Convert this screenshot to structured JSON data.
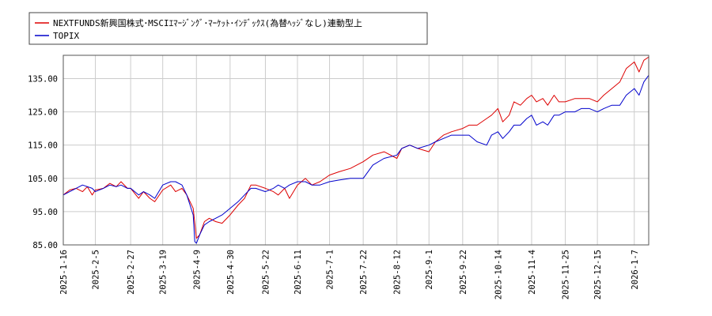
{
  "chart_data": {
    "type": "line",
    "title": "",
    "xlabel": "",
    "ylabel": "",
    "ylim": [
      85,
      142
    ],
    "yticks": [
      85,
      95,
      105,
      115,
      125,
      135
    ],
    "ytick_labels": [
      "85.00",
      "95.00",
      "105.00",
      "115.00",
      "125.00",
      "135.00"
    ],
    "grid": true,
    "legend_position": "top-left",
    "x_start": "2025-01-16",
    "x_end": "2026-01-16",
    "xticks": [
      "2025-1-16",
      "2025-2-5",
      "2025-2-27",
      "2025-3-19",
      "2025-4-9",
      "2025-4-30",
      "2025-5-22",
      "2025-6-11",
      "2025-7-1",
      "2025-7-22",
      "2025-8-12",
      "2025-9-1",
      "2025-9-22",
      "2025-10-14",
      "2025-11-4",
      "2025-11-25",
      "2025-12-15",
      "2026-1-7"
    ],
    "series": [
      {
        "name": "NEXTFUNDS新興国株式･MSCIｴﾏｰｼﾞﾝｸﾞ･ﾏｰｹｯﾄ･ｲﾝﾃﾞｯｸｽ(為替ﾍｯｼﾞなし)連動型上",
        "color": "#dd0000",
        "points": [
          [
            "2025-1-16",
            100
          ],
          [
            "2025-1-20",
            101.5
          ],
          [
            "2025-1-24",
            102
          ],
          [
            "2025-1-28",
            101
          ],
          [
            "2025-1-31",
            102.5
          ],
          [
            "2025-2-3",
            100
          ],
          [
            "2025-2-5",
            101.5
          ],
          [
            "2025-2-10",
            102
          ],
          [
            "2025-2-14",
            103.5
          ],
          [
            "2025-2-18",
            102.5
          ],
          [
            "2025-2-21",
            104
          ],
          [
            "2025-2-25",
            102
          ],
          [
            "2025-2-27",
            102
          ],
          [
            "2025-3-4",
            99
          ],
          [
            "2025-3-7",
            101
          ],
          [
            "2025-3-11",
            99
          ],
          [
            "2025-3-14",
            98
          ],
          [
            "2025-3-19",
            101.5
          ],
          [
            "2025-3-24",
            103
          ],
          [
            "2025-3-27",
            101
          ],
          [
            "2025-3-31",
            102
          ],
          [
            "2025-4-3",
            100
          ],
          [
            "2025-4-7",
            96
          ],
          [
            "2025-4-9",
            87
          ],
          [
            "2025-4-11",
            88
          ],
          [
            "2025-4-14",
            92
          ],
          [
            "2025-4-17",
            93
          ],
          [
            "2025-4-21",
            92
          ],
          [
            "2025-4-25",
            91.5
          ],
          [
            "2025-4-30",
            94
          ],
          [
            "2025-5-5",
            97
          ],
          [
            "2025-5-9",
            99
          ],
          [
            "2025-5-13",
            103
          ],
          [
            "2025-5-16",
            103
          ],
          [
            "2025-5-22",
            102
          ],
          [
            "2025-5-27",
            101
          ],
          [
            "2025-5-30",
            100
          ],
          [
            "2025-6-3",
            102
          ],
          [
            "2025-6-6",
            99
          ],
          [
            "2025-6-11",
            103
          ],
          [
            "2025-6-16",
            105
          ],
          [
            "2025-6-20",
            103
          ],
          [
            "2025-6-25",
            104
          ],
          [
            "2025-7-1",
            106
          ],
          [
            "2025-7-7",
            107
          ],
          [
            "2025-7-14",
            108
          ],
          [
            "2025-7-22",
            110
          ],
          [
            "2025-7-28",
            112
          ],
          [
            "2025-8-4",
            113
          ],
          [
            "2025-8-12",
            111
          ],
          [
            "2025-8-15",
            114
          ],
          [
            "2025-8-20",
            115
          ],
          [
            "2025-8-25",
            114
          ],
          [
            "2025-9-1",
            113
          ],
          [
            "2025-9-5",
            116
          ],
          [
            "2025-9-10",
            118
          ],
          [
            "2025-9-15",
            119
          ],
          [
            "2025-9-22",
            120
          ],
          [
            "2025-9-26",
            121
          ],
          [
            "2025-10-1",
            121
          ],
          [
            "2025-10-7",
            123
          ],
          [
            "2025-10-10",
            124
          ],
          [
            "2025-10-14",
            126
          ],
          [
            "2025-10-17",
            122
          ],
          [
            "2025-10-21",
            124
          ],
          [
            "2025-10-24",
            128
          ],
          [
            "2025-10-28",
            127
          ],
          [
            "2025-11-1",
            129
          ],
          [
            "2025-11-4",
            130
          ],
          [
            "2025-11-7",
            128
          ],
          [
            "2025-11-11",
            129
          ],
          [
            "2025-11-14",
            127
          ],
          [
            "2025-11-18",
            130
          ],
          [
            "2025-11-21",
            128
          ],
          [
            "2025-11-25",
            128
          ],
          [
            "2025-12-1",
            129
          ],
          [
            "2025-12-5",
            129
          ],
          [
            "2025-12-10",
            129
          ],
          [
            "2025-12-15",
            128
          ],
          [
            "2025-12-19",
            130
          ],
          [
            "2025-12-24",
            132
          ],
          [
            "2025-12-29",
            134
          ],
          [
            "2026-1-2",
            138
          ],
          [
            "2026-1-7",
            140
          ],
          [
            "2026-1-10",
            137
          ],
          [
            "2026-1-13",
            140.5
          ],
          [
            "2026-1-16",
            141.5
          ]
        ]
      },
      {
        "name": "TOPIX",
        "color": "#0000cc",
        "points": [
          [
            "2025-1-16",
            100
          ],
          [
            "2025-1-20",
            101
          ],
          [
            "2025-1-24",
            102
          ],
          [
            "2025-1-28",
            103
          ],
          [
            "2025-2-3",
            102
          ],
          [
            "2025-2-5",
            101
          ],
          [
            "2025-2-10",
            102
          ],
          [
            "2025-2-14",
            103
          ],
          [
            "2025-2-18",
            102.5
          ],
          [
            "2025-2-21",
            103
          ],
          [
            "2025-2-25",
            102
          ],
          [
            "2025-2-27",
            102
          ],
          [
            "2025-3-4",
            100
          ],
          [
            "2025-3-7",
            101
          ],
          [
            "2025-3-11",
            100
          ],
          [
            "2025-3-14",
            99
          ],
          [
            "2025-3-19",
            103
          ],
          [
            "2025-3-24",
            104
          ],
          [
            "2025-3-27",
            104
          ],
          [
            "2025-3-31",
            103
          ],
          [
            "2025-4-3",
            100
          ],
          [
            "2025-4-7",
            94
          ],
          [
            "2025-4-8",
            86
          ],
          [
            "2025-4-9",
            85.5
          ],
          [
            "2025-4-11",
            88
          ],
          [
            "2025-4-14",
            91
          ],
          [
            "2025-4-17",
            92
          ],
          [
            "2025-4-21",
            93
          ],
          [
            "2025-4-25",
            94
          ],
          [
            "2025-4-30",
            96
          ],
          [
            "2025-5-5",
            98
          ],
          [
            "2025-5-9",
            100
          ],
          [
            "2025-5-13",
            102
          ],
          [
            "2025-5-16",
            102
          ],
          [
            "2025-5-22",
            101
          ],
          [
            "2025-5-27",
            102
          ],
          [
            "2025-5-30",
            103
          ],
          [
            "2025-6-3",
            102
          ],
          [
            "2025-6-6",
            103
          ],
          [
            "2025-6-11",
            104
          ],
          [
            "2025-6-16",
            104
          ],
          [
            "2025-6-20",
            103
          ],
          [
            "2025-6-25",
            103
          ],
          [
            "2025-7-1",
            104
          ],
          [
            "2025-7-7",
            104.5
          ],
          [
            "2025-7-14",
            105
          ],
          [
            "2025-7-22",
            105
          ],
          [
            "2025-7-28",
            109
          ],
          [
            "2025-8-4",
            111
          ],
          [
            "2025-8-12",
            112
          ],
          [
            "2025-8-15",
            114
          ],
          [
            "2025-8-20",
            115
          ],
          [
            "2025-8-25",
            114
          ],
          [
            "2025-9-1",
            115
          ],
          [
            "2025-9-5",
            116
          ],
          [
            "2025-9-10",
            117
          ],
          [
            "2025-9-15",
            118
          ],
          [
            "2025-9-22",
            118
          ],
          [
            "2025-9-26",
            118
          ],
          [
            "2025-10-1",
            116
          ],
          [
            "2025-10-7",
            115
          ],
          [
            "2025-10-10",
            118
          ],
          [
            "2025-10-14",
            119
          ],
          [
            "2025-10-17",
            117
          ],
          [
            "2025-10-21",
            119
          ],
          [
            "2025-10-24",
            121
          ],
          [
            "2025-10-28",
            121
          ],
          [
            "2025-11-1",
            123
          ],
          [
            "2025-11-4",
            124
          ],
          [
            "2025-11-7",
            121
          ],
          [
            "2025-11-11",
            122
          ],
          [
            "2025-11-14",
            121
          ],
          [
            "2025-11-18",
            124
          ],
          [
            "2025-11-21",
            124
          ],
          [
            "2025-11-25",
            125
          ],
          [
            "2025-12-1",
            125
          ],
          [
            "2025-12-5",
            126
          ],
          [
            "2025-12-10",
            126
          ],
          [
            "2025-12-15",
            125
          ],
          [
            "2025-12-19",
            126
          ],
          [
            "2025-12-24",
            127
          ],
          [
            "2025-12-29",
            127
          ],
          [
            "2026-1-2",
            130
          ],
          [
            "2026-1-7",
            132
          ],
          [
            "2026-1-10",
            130
          ],
          [
            "2026-1-13",
            134
          ],
          [
            "2026-1-16",
            136
          ]
        ]
      }
    ]
  }
}
